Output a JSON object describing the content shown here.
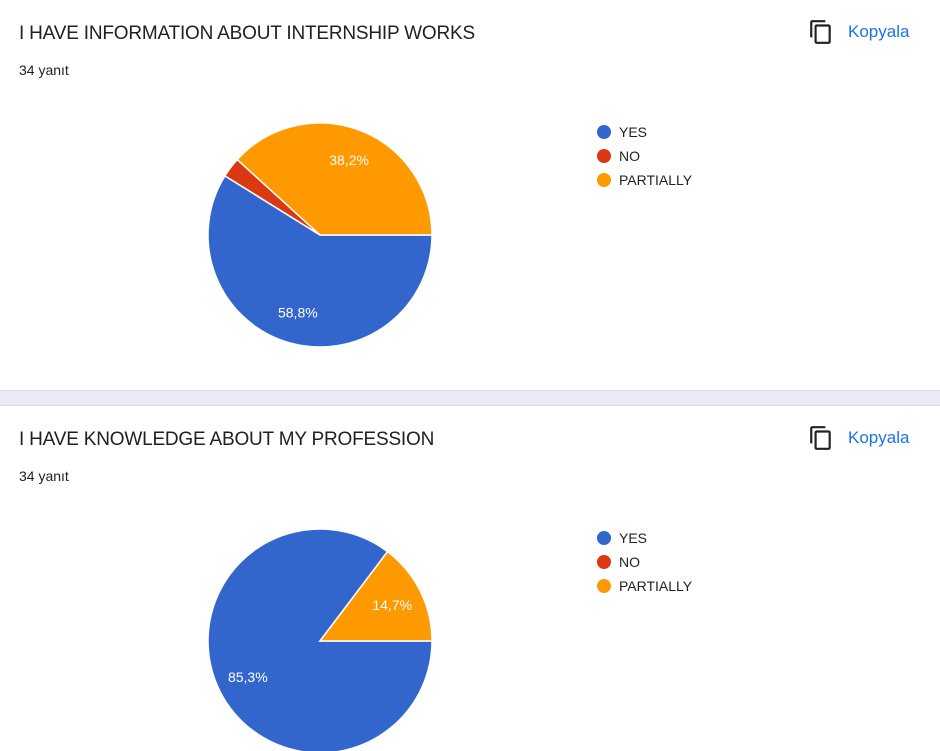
{
  "copy_label": "Kopyala",
  "colors": {
    "YES": "#3366cc",
    "NO": "#dc3912",
    "PARTIALLY": "#ff9900"
  },
  "chart_data": [
    {
      "type": "pie",
      "title": "I HAVE INFORMATION ABOUT INTERNSHIP WORKS",
      "subtitle": "34 yanıt",
      "categories": [
        "YES",
        "NO",
        "PARTIALLY"
      ],
      "values": [
        58.8,
        2.9,
        38.2
      ],
      "labels": [
        "58,8%",
        "",
        "38,2%"
      ],
      "legend": "right"
    },
    {
      "type": "pie",
      "title": "I HAVE KNOWLEDGE ABOUT MY PROFESSION",
      "subtitle": "34 yanıt",
      "categories": [
        "YES",
        "NO",
        "PARTIALLY"
      ],
      "values": [
        85.3,
        0,
        14.7
      ],
      "labels": [
        "85,3%",
        "",
        "14,7%"
      ],
      "legend": "right"
    }
  ]
}
